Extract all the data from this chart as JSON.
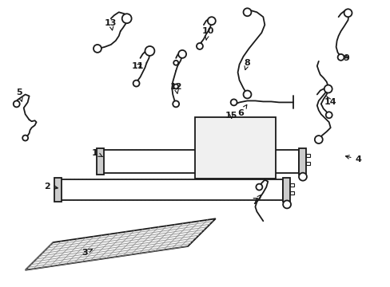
{
  "bg_color": "#ffffff",
  "line_color": "#1a1a1a",
  "fig_width": 4.89,
  "fig_height": 3.6,
  "dpi": 100,
  "hatch_color": "#555555",
  "box_color": "#e8e8e8"
}
